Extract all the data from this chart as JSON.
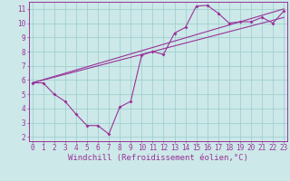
{
  "bg_color": "#cce8e8",
  "line_color": "#993399",
  "grid_color": "#99cccc",
  "xlabel": "Windchill (Refroidissement éolien,°C)",
  "ylabel_ticks": [
    2,
    3,
    4,
    5,
    6,
    7,
    8,
    9,
    10,
    11
  ],
  "xlabel_ticks": [
    0,
    1,
    2,
    3,
    4,
    5,
    6,
    7,
    8,
    9,
    10,
    11,
    12,
    13,
    14,
    15,
    16,
    17,
    18,
    19,
    20,
    21,
    22,
    23
  ],
  "xlim": [
    -0.3,
    23.3
  ],
  "ylim": [
    1.7,
    11.5
  ],
  "data_x": [
    0,
    1,
    2,
    3,
    4,
    5,
    6,
    7,
    8,
    9,
    10,
    11,
    12,
    13,
    14,
    15,
    16,
    17,
    18,
    19,
    20,
    21,
    22,
    23
  ],
  "data_y": [
    5.8,
    5.8,
    5.0,
    4.5,
    3.6,
    2.8,
    2.8,
    2.2,
    4.1,
    4.5,
    7.75,
    8.0,
    7.8,
    9.3,
    9.7,
    11.2,
    11.25,
    10.7,
    10.0,
    10.1,
    10.1,
    10.4,
    10.0,
    10.85
  ],
  "line1_x": [
    0,
    23
  ],
  "line1_y": [
    5.8,
    11.0
  ],
  "line2_x": [
    0,
    23
  ],
  "line2_y": [
    5.8,
    10.4
  ],
  "font_color": "#993399",
  "tick_fontsize": 5.5,
  "label_fontsize": 6.5
}
